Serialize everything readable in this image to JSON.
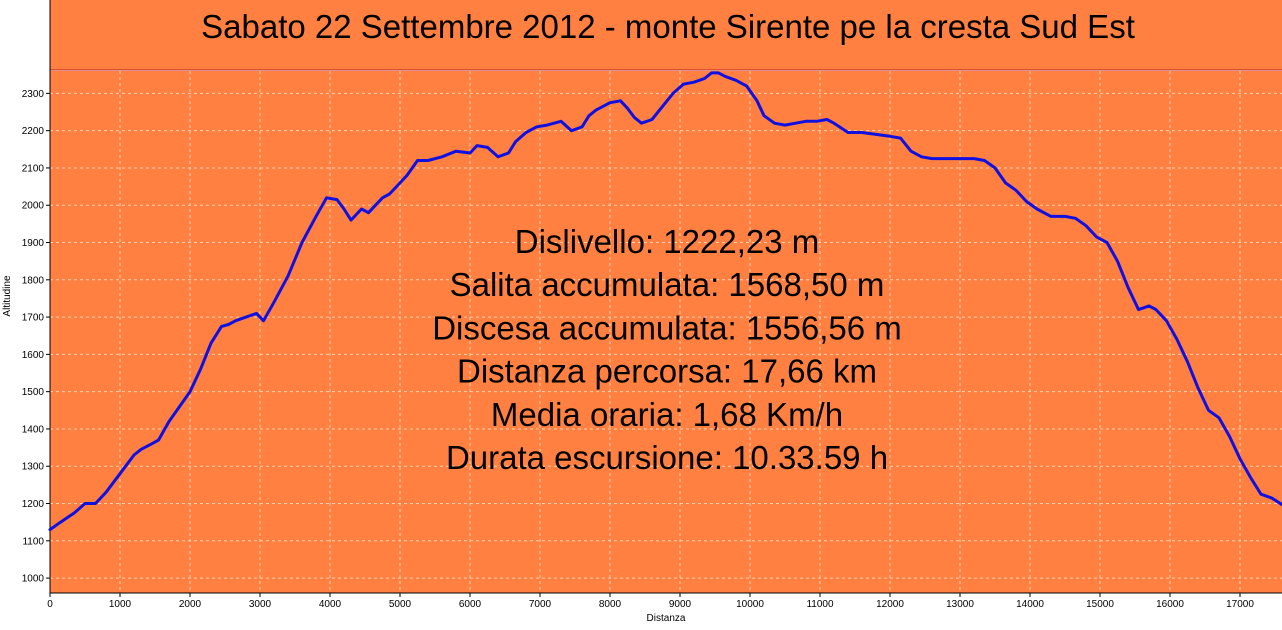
{
  "chart_data": {
    "type": "line",
    "title": "Sabato 22 Settembre 2012 - monte Sirente pe la cresta Sud Est",
    "xlabel": "Distanza",
    "ylabel": "Altitudine",
    "xlim": [
      0,
      17660
    ],
    "ylim": [
      960,
      2360
    ],
    "x_ticks": [
      0,
      1000,
      2000,
      3000,
      4000,
      5000,
      6000,
      7000,
      8000,
      9000,
      10000,
      11000,
      12000,
      13000,
      14000,
      15000,
      16000,
      17000
    ],
    "y_ticks": [
      1000,
      1100,
      1200,
      1300,
      1400,
      1500,
      1600,
      1700,
      1800,
      1900,
      2000,
      2100,
      2200,
      2300
    ],
    "grid": true,
    "background_color": "#ff8040",
    "line_color": "#1010e0",
    "series": [
      {
        "x": [
          0,
          150,
          350,
          500,
          650,
          800,
          1000,
          1200,
          1300,
          1450,
          1550,
          1700,
          1850,
          2000,
          2150,
          2300,
          2450,
          2550,
          2650,
          2800,
          2950,
          3050,
          3200,
          3400,
          3600,
          3800,
          3950,
          4100,
          4200,
          4300,
          4450,
          4550,
          4650,
          4750,
          4850,
          4950,
          5100,
          5250,
          5400,
          5600,
          5800,
          6000,
          6100,
          6250,
          6400,
          6550,
          6650,
          6800,
          6950,
          7100,
          7300,
          7450,
          7600,
          7700,
          7800,
          8000,
          8150,
          8250,
          8350,
          8450,
          8600,
          8750,
          8900,
          9050,
          9200,
          9350,
          9450,
          9550,
          9650,
          9800,
          9950,
          10100,
          10200,
          10350,
          10500,
          10650,
          10800,
          10950,
          11100,
          11200,
          11400,
          11600,
          11800,
          12000,
          12150,
          12300,
          12450,
          12600,
          12800,
          13000,
          13200,
          13350,
          13500,
          13650,
          13800,
          13950,
          14100,
          14300,
          14500,
          14650,
          14800,
          14950,
          15100,
          15250,
          15400,
          15550,
          15700,
          15800,
          15950,
          16100,
          16250,
          16400,
          16550,
          16700,
          16850,
          17000,
          17150,
          17300,
          17450,
          17660
        ],
        "y": [
          1130,
          1150,
          1175,
          1200,
          1200,
          1230,
          1280,
          1330,
          1345,
          1360,
          1370,
          1420,
          1460,
          1500,
          1560,
          1630,
          1675,
          1680,
          1690,
          1700,
          1710,
          1690,
          1740,
          1810,
          1900,
          1970,
          2020,
          2015,
          1990,
          1960,
          1990,
          1980,
          2000,
          2020,
          2030,
          2050,
          2080,
          2120,
          2120,
          2130,
          2145,
          2140,
          2160,
          2155,
          2130,
          2140,
          2170,
          2195,
          2210,
          2215,
          2225,
          2200,
          2210,
          2240,
          2255,
          2275,
          2280,
          2260,
          2235,
          2220,
          2230,
          2265,
          2300,
          2325,
          2330,
          2340,
          2355,
          2355,
          2345,
          2335,
          2320,
          2280,
          2240,
          2220,
          2215,
          2220,
          2225,
          2225,
          2230,
          2220,
          2195,
          2195,
          2190,
          2185,
          2180,
          2145,
          2130,
          2125,
          2125,
          2125,
          2125,
          2120,
          2100,
          2060,
          2040,
          2010,
          1990,
          1970,
          1970,
          1965,
          1945,
          1915,
          1900,
          1850,
          1780,
          1720,
          1730,
          1720,
          1690,
          1640,
          1580,
          1510,
          1450,
          1430,
          1380,
          1320,
          1270,
          1225,
          1215,
          1190
        ]
      }
    ],
    "annotations": [
      "Dislivello: 1222,23 m",
      "Salita accumulata: 1568,50 m",
      "Discesa accumulata: 1556,56 m",
      "Distanza percorsa: 17,66 km",
      "Media oraria: 1,68 Km/h",
      "Durata escursione: 10.33.59 h"
    ]
  }
}
